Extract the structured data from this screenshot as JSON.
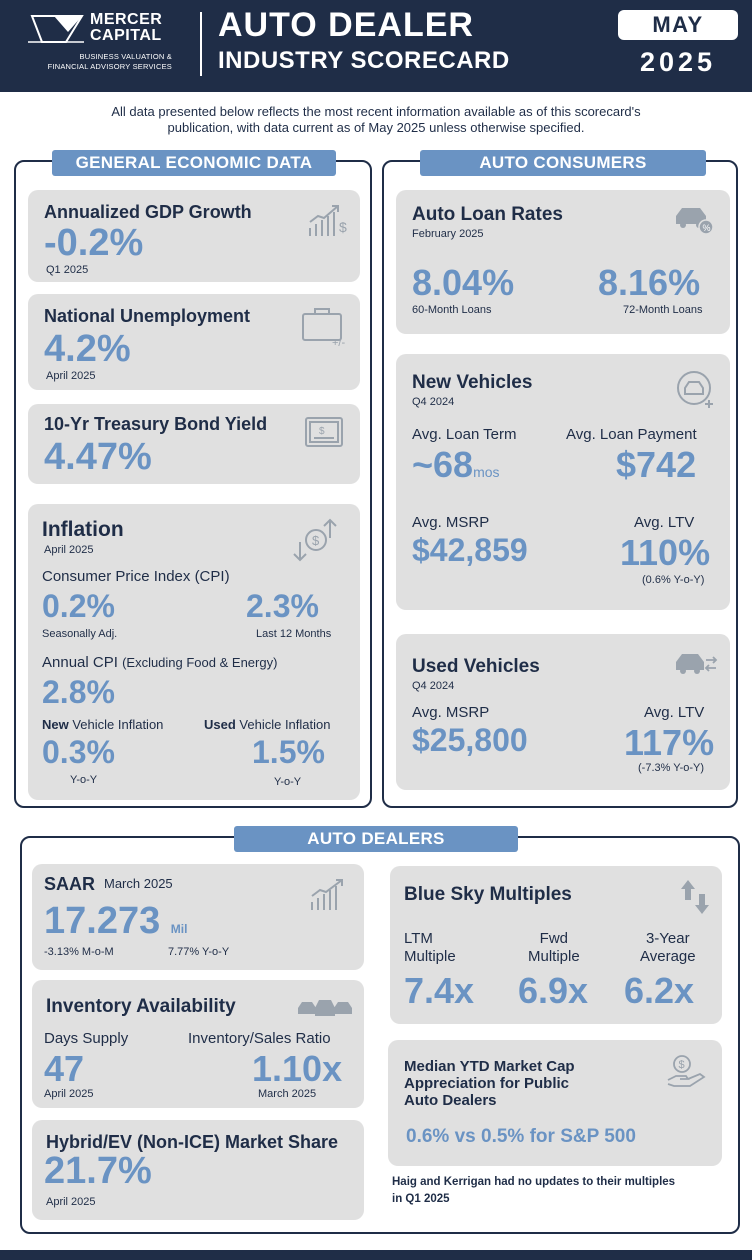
{
  "header": {
    "logo_line1": "MERCER",
    "logo_line2": "CAPITAL",
    "logo_sub1": "BUSINESS VALUATION &",
    "logo_sub2": "FINANCIAL ADVISORY SERVICES",
    "title_line1": "AUTO DEALER",
    "title_line2": "INDUSTRY SCORECARD",
    "month": "MAY",
    "year": "2025"
  },
  "intro_line1": "All data presented below reflects the most recent information available as of this scorecard's",
  "intro_line2": "publication, with data current as of May 2025 unless otherwise specified.",
  "general": {
    "label": "GENERAL ECONOMIC DATA",
    "gdp": {
      "title": "Annualized GDP Growth",
      "value": "-0.2%",
      "date": "Q1 2025"
    },
    "unemployment": {
      "title": "National Unemployment",
      "value": "4.2%",
      "date": "April 2025"
    },
    "treasury": {
      "title": "10-Yr Treasury Bond Yield",
      "value": "4.47%"
    },
    "inflation": {
      "title": "Inflation",
      "date": "April 2025",
      "cpi_label": "Consumer Price Index (CPI)",
      "cpi_sa_value": "0.2%",
      "cpi_sa_label": "Seasonally Adj.",
      "cpi_12m_value": "2.3%",
      "cpi_12m_label": "Last 12 Months",
      "core_label": "Annual CPI",
      "core_note": "(Excluding Food & Energy)",
      "core_value": "2.8%",
      "new_bold": "New",
      "new_rest": " Vehicle Inflation",
      "new_value": "0.3%",
      "new_sub": "Y-o-Y",
      "used_bold": "Used",
      "used_rest": " Vehicle Inflation",
      "used_value": "1.5%",
      "used_sub": "Y-o-Y"
    }
  },
  "consumers": {
    "label": "AUTO CONSUMERS",
    "loan_rates": {
      "title": "Auto Loan Rates",
      "date": "February 2025",
      "v60": "8.04%",
      "l60": "60-Month Loans",
      "v72": "8.16%",
      "l72": "72-Month Loans"
    },
    "new_vehicles": {
      "title": "New Vehicles",
      "date": "Q4 2024",
      "term_label": "Avg. Loan Term",
      "term_value": "~68",
      "term_unit": "mos",
      "payment_label": "Avg. Loan Payment",
      "payment_value": "$742",
      "msrp_label": "Avg. MSRP",
      "msrp_value": "$42,859",
      "ltv_label": "Avg. LTV",
      "ltv_value": "110%",
      "ltv_note": "(0.6% Y-o-Y)"
    },
    "used_vehicles": {
      "title": "Used Vehicles",
      "date": "Q4 2024",
      "msrp_label": "Avg. MSRP",
      "msrp_value": "$25,800",
      "ltv_label": "Avg. LTV",
      "ltv_value": "117%",
      "ltv_note": "(-7.3% Y-o-Y)"
    }
  },
  "dealers": {
    "label": "AUTO DEALERS",
    "saar": {
      "title": "SAAR",
      "date": "March 2025",
      "value": "17.273",
      "unit": "Mil",
      "mom": "-3.13% M-o-M",
      "yoy": "7.77% Y-o-Y"
    },
    "inventory": {
      "title": "Inventory Availability",
      "days_label": "Days Supply",
      "days_value": "47",
      "days_date": "April 2025",
      "ratio_label": "Inventory/Sales Ratio",
      "ratio_value": "1.10x",
      "ratio_date": "March 2025"
    },
    "hybrid": {
      "title": "Hybrid/EV (Non-ICE) Market Share",
      "value": "21.7%",
      "date": "April 2025"
    },
    "blue_sky": {
      "title": "Blue Sky Multiples",
      "ltm_l1": "LTM",
      "ltm_l2": "Multiple",
      "ltm_value": "7.4x",
      "fwd_l1": "Fwd",
      "fwd_l2": "Multiple",
      "fwd_value": "6.9x",
      "avg_l1": "3-Year",
      "avg_l2": "Average",
      "avg_value": "6.2x"
    },
    "market_cap": {
      "title_l1": "Median YTD Market Cap",
      "title_l2": "Appreciation for Public",
      "title_l3": "Auto Dealers",
      "value": "0.6% vs 0.5% for S&P 500"
    },
    "note_l1": "Haig and Kerrigan had no updates to their multiples",
    "note_l2": "in Q1 2025"
  },
  "icons": {
    "gdp": "growth-chart-icon",
    "unemployment": "briefcase-icon",
    "treasury": "bond-certificate-icon",
    "inflation": "inflation-arrows-dollar-icon",
    "loan": "car-percent-icon",
    "new_vehicle": "new-car-plus-icon",
    "used_vehicle": "used-car-exchange-icon",
    "saar": "growth-chart-icon",
    "inventory": "car-lot-icon",
    "blue_sky": "up-down-arrows-icon",
    "market_cap": "hand-dollar-icon"
  },
  "colors": {
    "navy": "#1f2d47",
    "accent": "#6a93c3",
    "card": "#e0e0e0"
  }
}
